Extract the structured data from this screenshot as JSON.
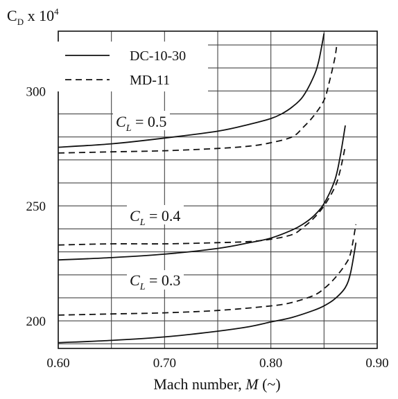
{
  "chart_data": {
    "type": "line",
    "xlabel": "Mach number, M (~)",
    "xlabel_parts": {
      "pre": "Mach number, ",
      "italic": "M",
      "post": " (~)"
    },
    "ylabel": "C_D x 10^4",
    "ylabel_parts": {
      "base": "C",
      "sub": "D",
      "mid": " x 10",
      "sup": "4"
    },
    "xlim": [
      0.6,
      0.9
    ],
    "ylim": [
      188,
      326
    ],
    "xticks": [
      "0.60",
      "0.70",
      "0.80",
      "0.90"
    ],
    "yticks": [
      "200",
      "250",
      "300"
    ],
    "grid": true,
    "legend": {
      "position": "top-left",
      "entries": [
        {
          "label": "DC-10-30",
          "style": "solid"
        },
        {
          "label": "MD-11",
          "style": "dashed"
        }
      ]
    },
    "annotations": [
      {
        "text": "C_L = 0.5",
        "italic": "C",
        "sub": "L",
        "rest": " = 0.5"
      },
      {
        "text": "C_L = 0.4",
        "italic": "C",
        "sub": "L",
        "rest": " = 0.4"
      },
      {
        "text": "C_L = 0.3",
        "italic": "C",
        "sub": "L",
        "rest": " = 0.3"
      }
    ],
    "series": [
      {
        "name": "DC-10-30",
        "cl": 0.5,
        "style": "solid",
        "x": [
          0.6,
          0.65,
          0.7,
          0.75,
          0.78,
          0.8,
          0.81,
          0.82,
          0.83,
          0.84,
          0.845,
          0.85
        ],
        "y": [
          275.5,
          277,
          279.5,
          282.5,
          285.5,
          288,
          290,
          293,
          297.5,
          306,
          313,
          325
        ]
      },
      {
        "name": "MD-11",
        "cl": 0.5,
        "style": "dashed",
        "x": [
          0.6,
          0.65,
          0.7,
          0.75,
          0.78,
          0.8,
          0.82,
          0.83,
          0.84,
          0.85,
          0.855,
          0.86,
          0.862
        ],
        "y": [
          273,
          273.5,
          274,
          275,
          276,
          277.5,
          280,
          284,
          289,
          296,
          304,
          314,
          320
        ]
      },
      {
        "name": "DC-10-30",
        "cl": 0.4,
        "style": "solid",
        "x": [
          0.6,
          0.65,
          0.7,
          0.75,
          0.78,
          0.8,
          0.82,
          0.83,
          0.84,
          0.85,
          0.86,
          0.865,
          0.87
        ],
        "y": [
          226.5,
          227.5,
          229,
          231.5,
          234,
          236,
          239.5,
          242,
          245.5,
          251,
          261,
          271,
          285
        ]
      },
      {
        "name": "MD-11",
        "cl": 0.4,
        "style": "dashed",
        "x": [
          0.6,
          0.65,
          0.7,
          0.75,
          0.78,
          0.8,
          0.82,
          0.83,
          0.84,
          0.85,
          0.86,
          0.865,
          0.87
        ],
        "y": [
          233,
          233.5,
          233.5,
          234,
          234.5,
          235.5,
          237.5,
          240.5,
          244.5,
          250,
          258,
          265,
          276
        ]
      },
      {
        "name": "DC-10-30",
        "cl": 0.3,
        "style": "solid",
        "x": [
          0.6,
          0.65,
          0.7,
          0.75,
          0.78,
          0.8,
          0.82,
          0.84,
          0.85,
          0.86,
          0.87,
          0.875,
          0.88
        ],
        "y": [
          190.5,
          191.5,
          193,
          195.5,
          197.5,
          199.5,
          201.5,
          204.5,
          206.5,
          209.5,
          214.5,
          221,
          234
        ]
      },
      {
        "name": "MD-11",
        "cl": 0.3,
        "style": "dashed",
        "x": [
          0.6,
          0.65,
          0.7,
          0.75,
          0.8,
          0.82,
          0.84,
          0.85,
          0.86,
          0.87,
          0.875,
          0.88
        ],
        "y": [
          202.5,
          203,
          203.5,
          204.5,
          206.5,
          208,
          211,
          214,
          218.5,
          224.5,
          229.5,
          242
        ]
      }
    ]
  }
}
